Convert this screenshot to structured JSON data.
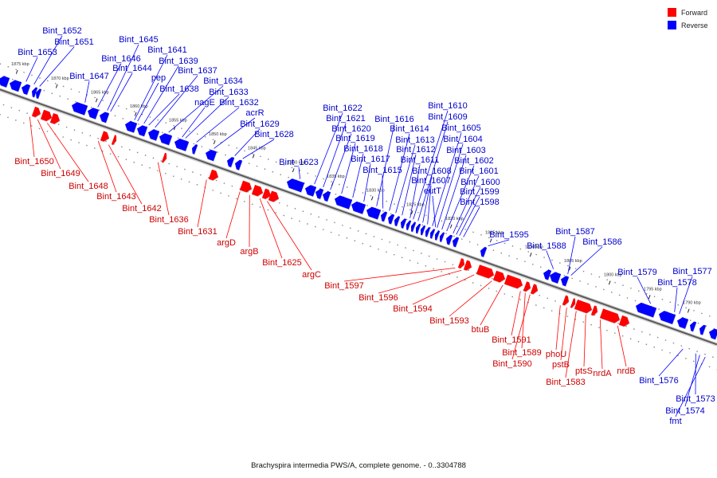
{
  "caption": "Brachyspira intermedia PWS/A, complete genome. - 0..3304788",
  "legend": [
    {
      "label": "Forward",
      "color": "#ff0000"
    },
    {
      "label": "Reverse",
      "color": "#0000ff"
    }
  ],
  "colors": {
    "forward": "#ff0000",
    "reverse": "#0000ff",
    "backbone": "#999999"
  },
  "ticks": [
    "1875 kbp",
    "1870 kbp",
    "1865 kbp",
    "1860 kbp",
    "1855 kbp",
    "1850 kbp",
    "1845 kbp",
    "1840 kbp",
    "1835 kbp",
    "1830 kbp",
    "1825 kbp",
    "1820 kbp",
    "1815 kbp",
    "1810 kbp",
    "1805 kbp",
    "1800 kbp",
    "1795 kbp",
    "1790 kbp"
  ],
  "reverse_genes": [
    "Bint_1652",
    "Bint_1651",
    "Bint_1653",
    "Bint_1647",
    "Bint_1646",
    "Bint_1645",
    "Bint_1644",
    "Bint_1641",
    "Bint_1639",
    "pep",
    "Bint_1637",
    "Bint_1638",
    "Bint_1634",
    "Bint_1633",
    "nagE",
    "Bint_1632",
    "acrR",
    "Bint_1629",
    "Bint_1628",
    "Bint_1623",
    "Bint_1622",
    "Bint_1621",
    "Bint_1620",
    "Bint_1619",
    "Bint_1618",
    "Bint_1617",
    "Bint_1616",
    "Bint_1615",
    "Bint_1614",
    "Bint_1613",
    "Bint_1612",
    "Bint_1611",
    "Bint_1610",
    "Bint_1609",
    "Bint_1608",
    "Bint_1607",
    "Bint_1605",
    "Bint_1604",
    "Bint_1603",
    "Bint_1602",
    "Bint_1601",
    "Bint_1600",
    "eutT",
    "Bint_1599",
    "Bint_1598",
    "Bint_1595",
    "Bint_1588",
    "Bint_1587",
    "Bint_1586",
    "Bint_1579",
    "Bint_1578",
    "Bint_1577",
    "Bint_1576",
    "Bint_1573",
    "Bint_1574",
    "fmt"
  ],
  "forward_genes": [
    "Bint_1650",
    "Bint_1649",
    "Bint_1648",
    "Bint_1643",
    "Bint_1642",
    "Bint_1636",
    "Bint_1631",
    "argD",
    "argB",
    "Bint_1625",
    "argC",
    "Bint_1597",
    "Bint_1596",
    "Bint_1594",
    "Bint_1593",
    "btuB",
    "Bint_1591",
    "Bint_1589",
    "Bint_1590",
    "phoU",
    "pstB",
    "ptsS",
    "nrdA",
    "nrdB",
    "Bint_1583"
  ]
}
